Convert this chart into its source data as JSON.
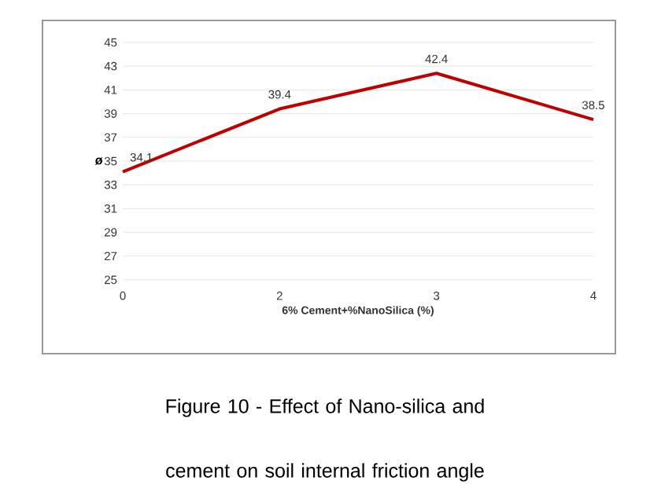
{
  "chart_data": {
    "type": "line",
    "categories": [
      "0",
      "2",
      "3",
      "4"
    ],
    "series": [
      {
        "color": "#c00000",
        "values": [
          34.1,
          39.4,
          42.4,
          38.5
        ]
      }
    ],
    "xlabel": "6% Cement+%NanoSilica (%)",
    "ylabel": "ø",
    "ylim": [
      25,
      45
    ],
    "yticks": [
      25,
      27,
      29,
      31,
      33,
      35,
      37,
      39,
      41,
      43,
      45
    ],
    "grid": "y",
    "data_labels": true,
    "marker": "none",
    "line_style": "solid",
    "annotations": [
      "Figure 10 - Effect of Nano-silica and cement on soil internal friction angle"
    ]
  }
}
